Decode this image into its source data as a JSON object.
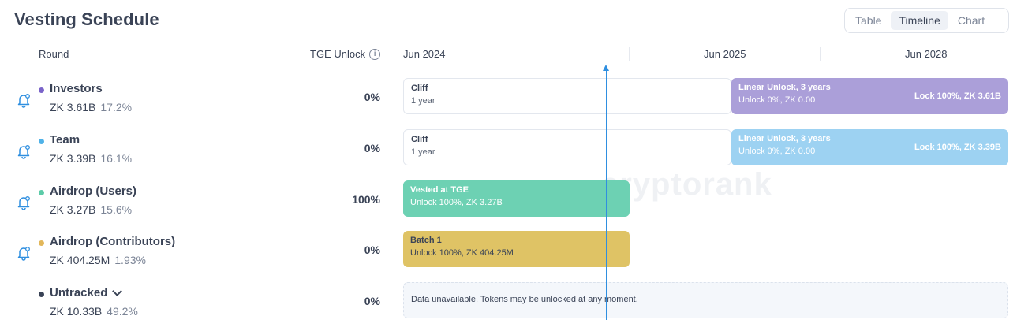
{
  "page": {
    "title": "Vesting Schedule"
  },
  "view_toggle": [
    {
      "label": "Table",
      "active": false
    },
    {
      "label": "Timeline",
      "active": true
    },
    {
      "label": "Chart",
      "active": false
    }
  ],
  "columns": {
    "round": "Round",
    "tge": "TGE Unlock",
    "tge_info_icon": "info-icon"
  },
  "timeline_headers": [
    "Jun 2024",
    "Jun 2025",
    "Jun 2028"
  ],
  "watermark": "cryptorank",
  "rounds": [
    {
      "name": "Investors",
      "amount": "ZK 3.61B",
      "share": "17.2%",
      "tge": "0%",
      "dot_color": "#7a63c9",
      "bars": [
        {
          "kind": "cliff",
          "title": "Cliff",
          "sub": "1 year"
        },
        {
          "kind": "linear",
          "color": "#ab9fd9",
          "title": "Linear Unlock, 3 years",
          "sub": "Unlock 0%, ZK 0.00",
          "right": "Lock 100%, ZK 3.61B"
        }
      ]
    },
    {
      "name": "Team",
      "amount": "ZK 3.39B",
      "share": "16.1%",
      "tge": "0%",
      "dot_color": "#4fb2e8",
      "bars": [
        {
          "kind": "cliff",
          "title": "Cliff",
          "sub": "1 year"
        },
        {
          "kind": "linear",
          "color": "#9dd2f2",
          "title": "Linear Unlock, 3 years",
          "sub": "Unlock 0%, ZK 0.00",
          "right": "Lock 100%, ZK 3.39B"
        }
      ]
    },
    {
      "name": "Airdrop (Users)",
      "amount": "ZK 3.27B",
      "share": "15.6%",
      "tge": "100%",
      "dot_color": "#5ccba8",
      "bars": [
        {
          "kind": "tge",
          "color": "#6dd1b3",
          "title": "Vested at TGE",
          "sub": "Unlock 100%, ZK 3.27B"
        }
      ]
    },
    {
      "name": "Airdrop (Contributors)",
      "amount": "ZK 404.25M",
      "share": "1.93%",
      "tge": "0%",
      "dot_color": "#e2b75a",
      "bars": [
        {
          "kind": "batch",
          "color": "#dfc365",
          "title": "Batch 1",
          "sub": "Unlock 100%, ZK 404.25M"
        }
      ]
    },
    {
      "name": "Untracked",
      "amount": "ZK 10.33B",
      "share": "49.2%",
      "tge": "0%",
      "dot_color": "#3a4356",
      "bars": [
        {
          "kind": "nodata",
          "title": "Data unavailable. Tokens may be unlocked at any moment."
        }
      ]
    }
  ]
}
